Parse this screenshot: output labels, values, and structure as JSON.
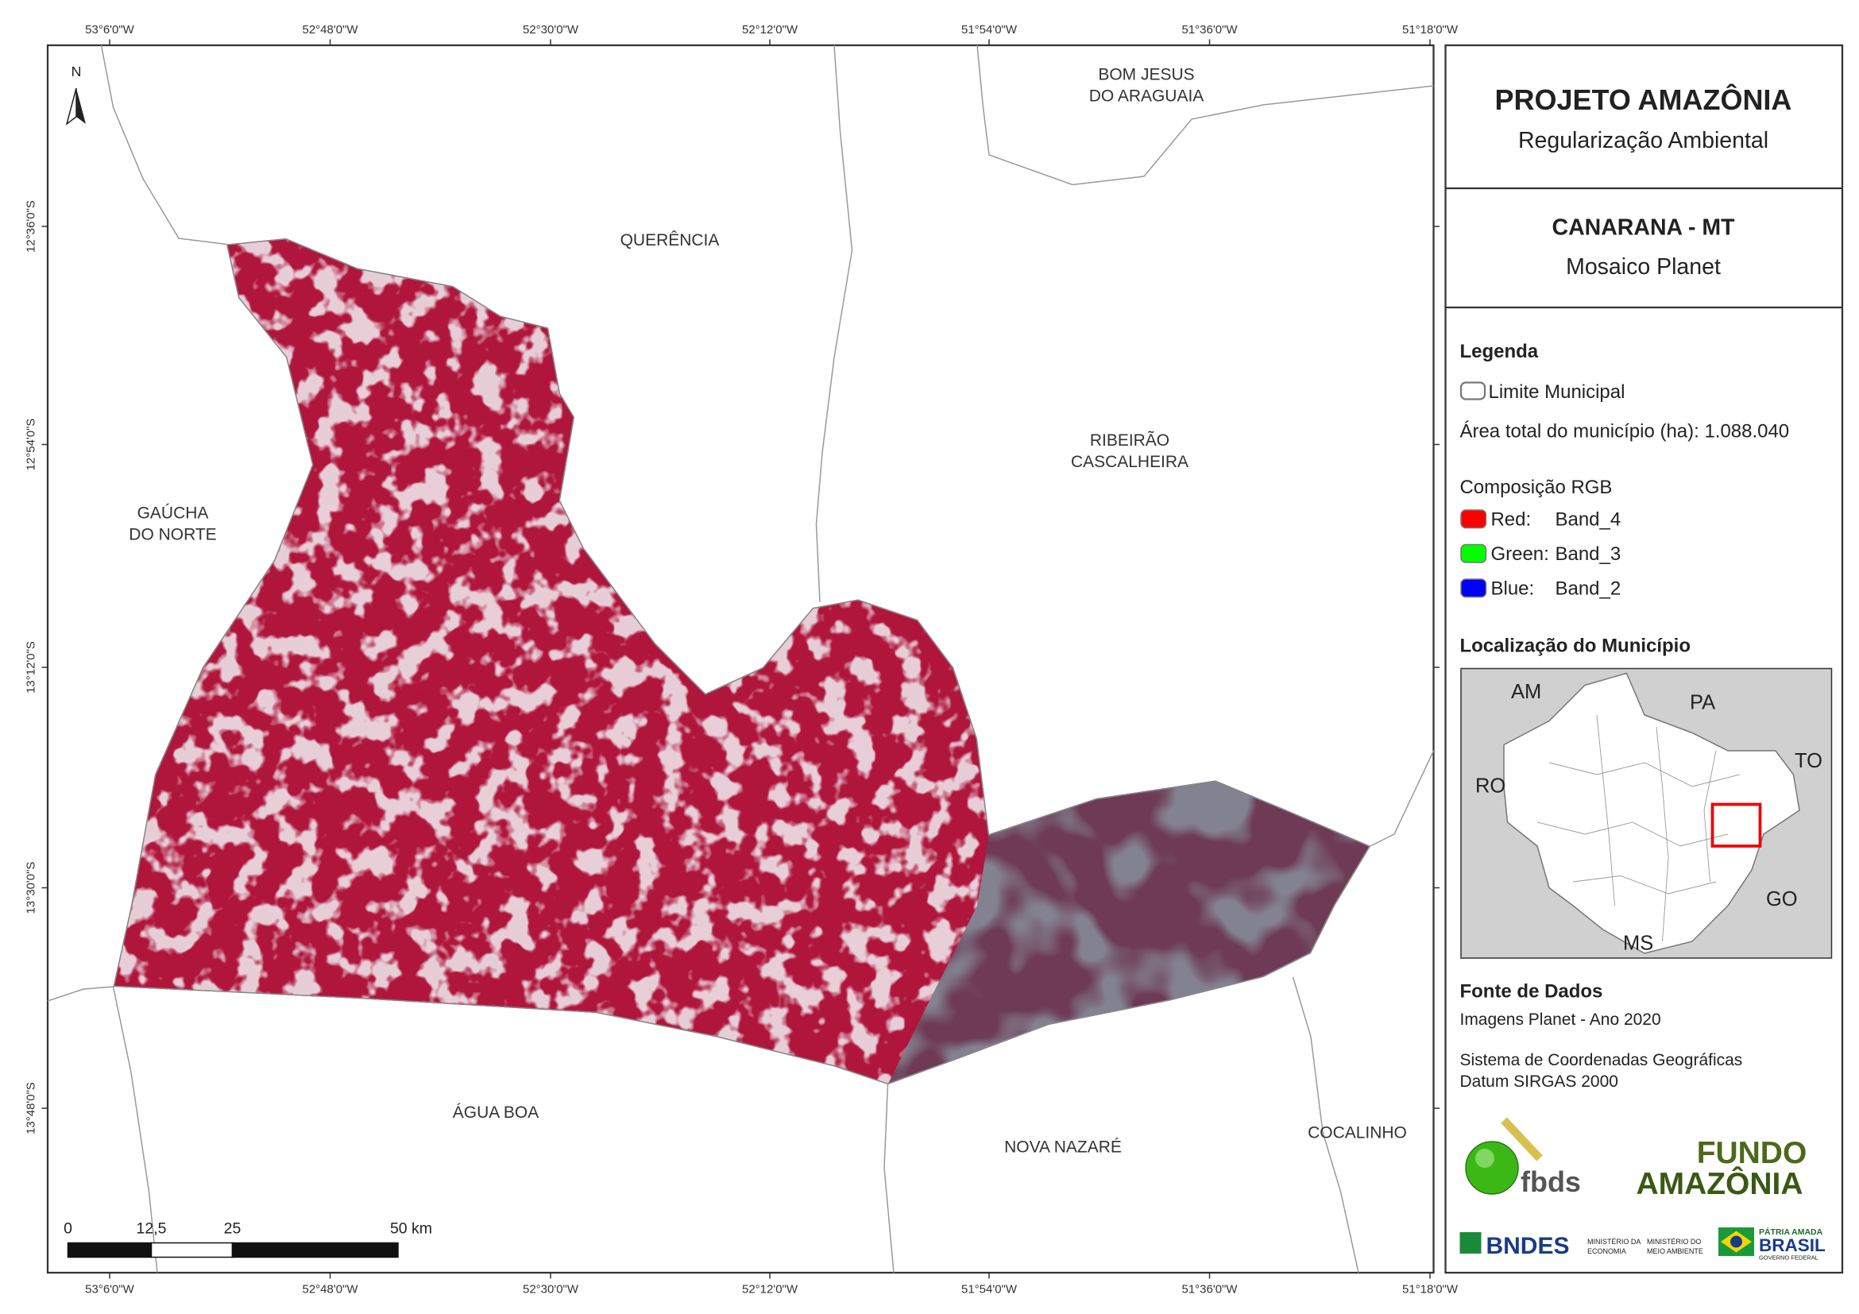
{
  "graticule": {
    "top": [
      "53°6'0\"W",
      "52°48'0\"W",
      "52°30'0\"W",
      "52°12'0\"W",
      "51°54'0\"W",
      "51°36'0\"W",
      "51°18'0\"W"
    ],
    "bottom": [
      "53°6'0\"W",
      "52°48'0\"W",
      "52°30'0\"W",
      "52°12'0\"W",
      "51°54'0\"W",
      "51°36'0\"W",
      "51°18'0\"W"
    ],
    "left": [
      "12°36'0\"S",
      "12°54'0\"S",
      "13°12'0\"S",
      "13°30'0\"S",
      "13°48'0\"S"
    ]
  },
  "north": "N",
  "map_labels": [
    {
      "lines": [
        "BOM JESUS",
        "DO ARAGUAIA"
      ]
    },
    {
      "lines": [
        "QUERÊNCIA"
      ]
    },
    {
      "lines": [
        "RIBEIRÃO",
        "CASCALHEIRA"
      ]
    },
    {
      "lines": [
        "GAÚCHA",
        "DO NORTE"
      ]
    },
    {
      "lines": [
        "ÁGUA BOA"
      ]
    },
    {
      "lines": [
        "NOVA NAZARÉ"
      ]
    },
    {
      "lines": [
        "COCALINHO"
      ]
    }
  ],
  "scale_bar": [
    "0",
    "12,5",
    "25",
    "50 km"
  ],
  "panel": {
    "title": "PROJETO AMAZÔNIA",
    "subtitle": "Regularização Ambiental",
    "place": "CANARANA - MT",
    "product": "Mosaico Planet",
    "legend": {
      "title": "Legenda",
      "boundary": "Limite Municipal",
      "area": "Área total do município (ha): 1.088.040",
      "rgb_title": "Composição RGB",
      "bands": [
        {
          "channel": "Red:",
          "band": "Band_4"
        },
        {
          "channel": "Green:",
          "band": "Band_3"
        },
        {
          "channel": "Blue:",
          "band": "Band_2"
        }
      ]
    },
    "location_title": "Localização do Município",
    "inset_labels": [
      "AM",
      "PA",
      "TO",
      "RO",
      "GO",
      "MS"
    ],
    "source": {
      "title": "Fonte de Dados",
      "lines": [
        "Imagens Planet - Ano 2020",
        "Sistema de Coordenadas Geográficas",
        "Datum SIRGAS 2000"
      ]
    },
    "logos": {
      "fbds": "fbds",
      "fundo": [
        "FUNDO",
        "AMAZÔNIA"
      ],
      "bndes": "BNDES",
      "ministries": [
        "MINISTÉRIO DA",
        "ECONOMIA",
        "MINISTÉRIO DO",
        "MEIO AMBIENTE"
      ],
      "gov": [
        "PÁTRIA AMADA",
        "BRASIL",
        "GOVERNO FEDERAL"
      ]
    }
  }
}
